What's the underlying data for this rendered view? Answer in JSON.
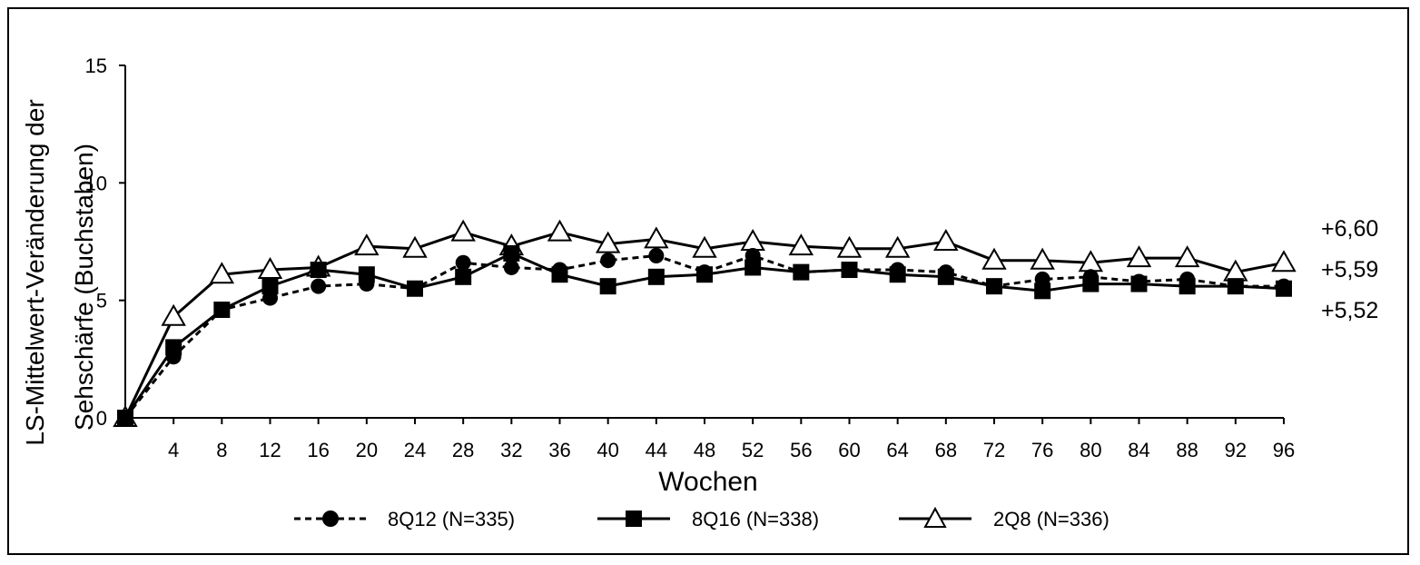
{
  "chart_data": {
    "type": "line",
    "title": "",
    "xlabel": "Wochen",
    "ylabel_lines": [
      "LS-Mittelwert-Veränderung der",
      "Sehschärfe (Buchstaben)"
    ],
    "x": [
      0,
      4,
      8,
      12,
      16,
      20,
      24,
      28,
      32,
      36,
      40,
      44,
      48,
      52,
      56,
      60,
      64,
      68,
      72,
      76,
      80,
      84,
      88,
      92,
      96
    ],
    "x_tick_labels": [
      "4",
      "8",
      "12",
      "16",
      "20",
      "24",
      "28",
      "32",
      "36",
      "40",
      "44",
      "48",
      "52",
      "56",
      "60",
      "64",
      "68",
      "72",
      "76",
      "80",
      "84",
      "88",
      "92",
      "96"
    ],
    "y_tick_labels": [
      "0",
      "5",
      "10",
      "15"
    ],
    "xlim": [
      0,
      96
    ],
    "ylim": [
      0,
      15
    ],
    "grid": false,
    "legend_position": "bottom",
    "series": [
      {
        "name": "8Q12 (N=335)",
        "marker": "circle",
        "line": "dashed",
        "values": [
          0,
          2.6,
          4.6,
          5.1,
          5.6,
          5.7,
          5.5,
          6.6,
          6.4,
          6.3,
          6.7,
          6.9,
          6.2,
          6.9,
          6.2,
          6.3,
          6.3,
          6.2,
          5.6,
          5.9,
          6.0,
          5.8,
          5.9,
          5.6,
          5.6
        ]
      },
      {
        "name": "8Q16 (N=338)",
        "marker": "square",
        "line": "solid",
        "values": [
          0,
          3.0,
          4.6,
          5.6,
          6.3,
          6.1,
          5.5,
          6.0,
          7.0,
          6.1,
          5.6,
          6.0,
          6.1,
          6.4,
          6.2,
          6.3,
          6.1,
          6.0,
          5.6,
          5.4,
          5.7,
          5.7,
          5.6,
          5.6,
          5.5
        ]
      },
      {
        "name": "2Q8 (N=336)",
        "marker": "triangle",
        "line": "solid",
        "values": [
          0,
          4.3,
          6.1,
          6.3,
          6.4,
          7.3,
          7.2,
          7.9,
          7.3,
          7.9,
          7.4,
          7.6,
          7.2,
          7.5,
          7.3,
          7.2,
          7.2,
          7.5,
          6.7,
          6.7,
          6.6,
          6.8,
          6.8,
          6.2,
          6.6
        ]
      }
    ],
    "end_labels": [
      "+6,60",
      "+5,59",
      "+5,52"
    ]
  }
}
